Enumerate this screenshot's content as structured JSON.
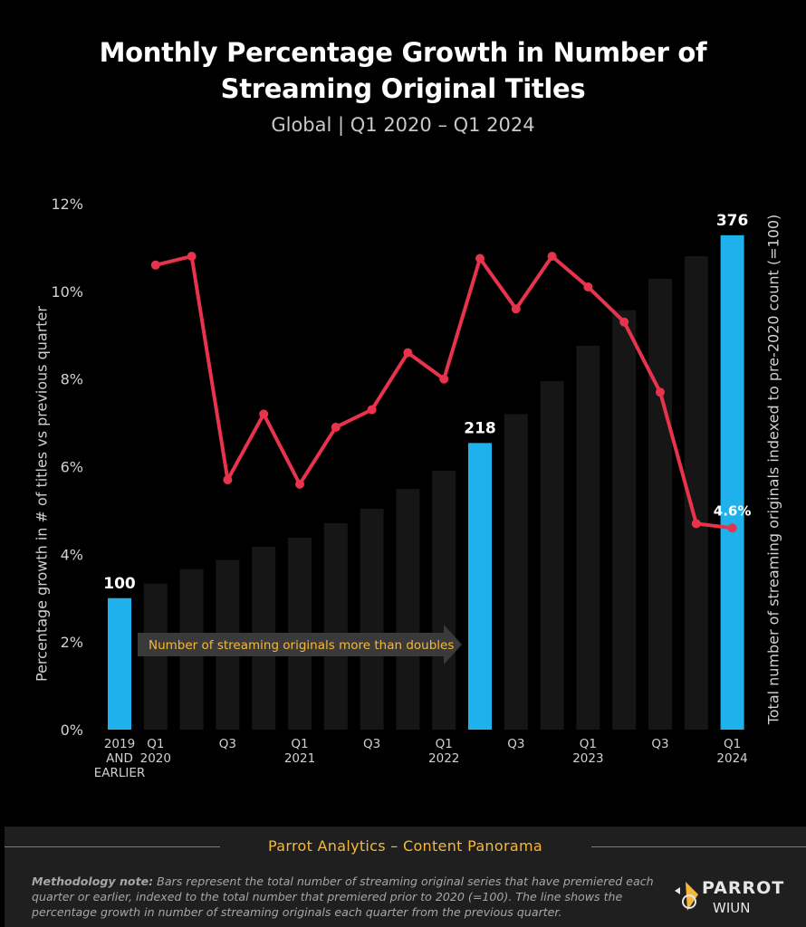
{
  "header": {
    "title_line1": "Monthly Percentage Growth in Number of",
    "title_line2": "Streaming Original Titles",
    "subtitle": "Global  |  Q1 2020 – Q1 2024"
  },
  "colors": {
    "highlight_bar": "#1eb1ec",
    "bar": "#161616",
    "line": "#e8334d",
    "accent": "#f5b83a"
  },
  "chart_data": {
    "type": "bar",
    "categories": [
      "2019 AND EARLIER",
      "Q1 2020",
      "Q2 2020",
      "Q3 2020",
      "Q4 2020",
      "Q1 2021",
      "Q2 2021",
      "Q3 2021",
      "Q4 2021",
      "Q1 2022",
      "Q2 2022",
      "Q3 2022",
      "Q4 2022",
      "Q1 2023",
      "Q2 2023",
      "Q3 2023",
      "Q4 2023",
      "Q1 2024"
    ],
    "x_tick_labels": [
      {
        "index": 0,
        "lines": [
          "2019",
          "AND",
          "EARLIER"
        ]
      },
      {
        "index": 1,
        "lines": [
          "Q1",
          "2020"
        ]
      },
      {
        "index": 3,
        "lines": [
          "Q3"
        ]
      },
      {
        "index": 5,
        "lines": [
          "Q1",
          "2021"
        ]
      },
      {
        "index": 7,
        "lines": [
          "Q3"
        ]
      },
      {
        "index": 9,
        "lines": [
          "Q1",
          "2022"
        ]
      },
      {
        "index": 11,
        "lines": [
          "Q3"
        ]
      },
      {
        "index": 13,
        "lines": [
          "Q1",
          "2023"
        ]
      },
      {
        "index": 15,
        "lines": [
          "Q3"
        ]
      },
      {
        "index": 17,
        "lines": [
          "Q1",
          "2024"
        ]
      }
    ],
    "bar_series": {
      "values": [
        100,
        111,
        122,
        129,
        139,
        146,
        157,
        168,
        183,
        197,
        218,
        240,
        265,
        292,
        319,
        343,
        360,
        376
      ],
      "highlight_indices": [
        0,
        10,
        17
      ],
      "data_labels": [
        {
          "index": 0,
          "text": "100"
        },
        {
          "index": 10,
          "text": "218"
        },
        {
          "index": 17,
          "text": "376"
        }
      ],
      "axis_max": 400
    },
    "line_series": {
      "values": [
        null,
        10.6,
        10.8,
        5.7,
        7.2,
        5.6,
        6.9,
        7.3,
        8.6,
        8.0,
        10.75,
        9.6,
        10.8,
        10.1,
        9.3,
        7.7,
        4.7,
        4.6
      ],
      "end_label": "4.6%"
    },
    "yaxis_left": {
      "label": "Percentage growth in # of titles vs previous quarter",
      "ticks": [
        "0%",
        "2%",
        "4%",
        "6%",
        "8%",
        "10%",
        "12%"
      ],
      "ylim": [
        0,
        12
      ]
    },
    "yaxis_right": {
      "label": "Total number of streaming originals indexed to pre-2020 count (=100)"
    },
    "annotation": "Number of streaming originals more than doubles"
  },
  "footer": {
    "title": "Parrot Analytics – Content Panorama",
    "method_bold": "Methodology note:",
    "method_text": " Bars represent the total number of streaming original series that have premiered each quarter or earlier, indexed to the total number that premiered prior to 2020 (=100).  The line shows the percentage growth in number of streaming originals each quarter from the previous quarter.",
    "logo_text": "PARROT",
    "logo_sub": "WIUN",
    "logo_icon": "parrot-logo-icon"
  }
}
